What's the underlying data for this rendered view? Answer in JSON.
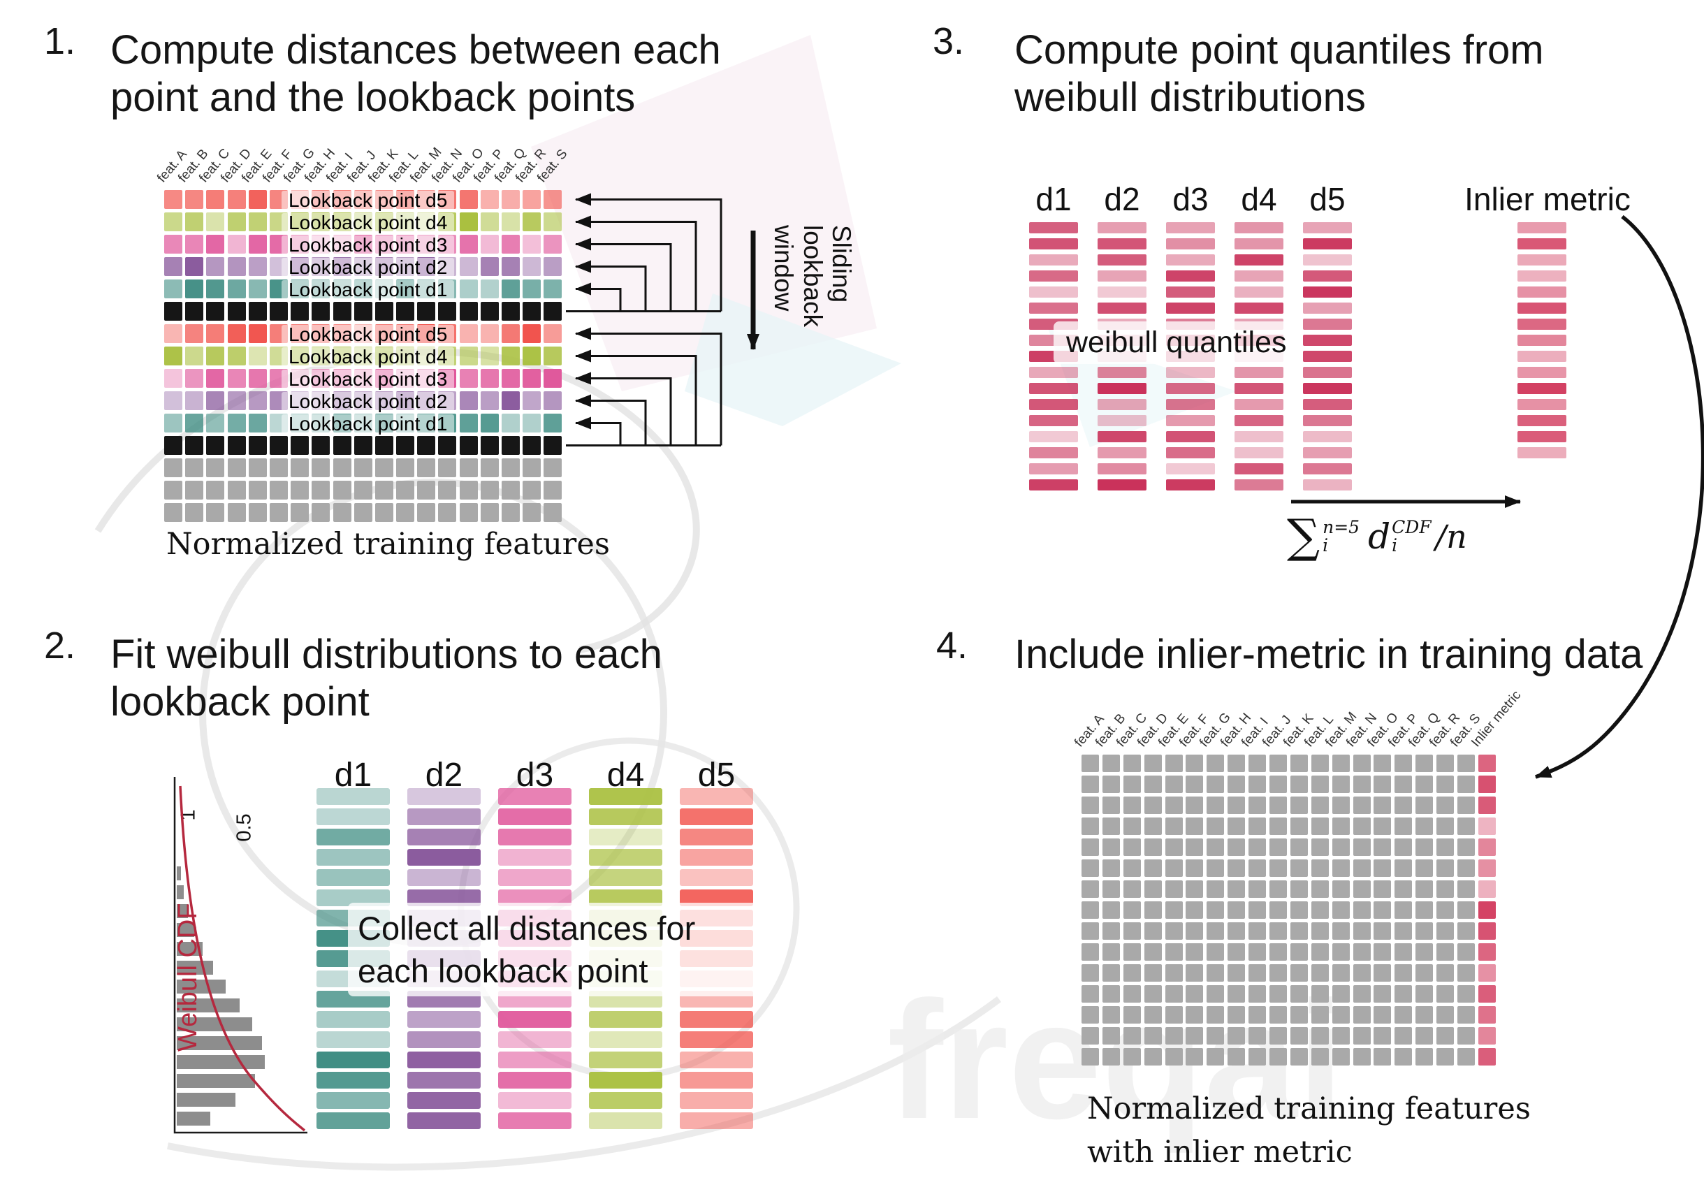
{
  "colors": {
    "d1": "#3f8d83",
    "d2": "#8a5a9d",
    "d3": "#e0579b",
    "d4": "#a9bf3e",
    "d5": "#f1514a",
    "current": "#161616",
    "plain": "#a9a9a9",
    "quantile": "#c93059",
    "inlier": "#d23b5e",
    "cdf_curve": "#b5283e",
    "hist_bar": "#8d8d8d"
  },
  "features": [
    "feat. A",
    "feat. B",
    "feat. C",
    "feat. D",
    "feat. E",
    "feat. F",
    "feat. G",
    "feat. H",
    "feat. I",
    "feat. J",
    "feat. K",
    "feat. L",
    "feat. M",
    "feat. N",
    "feat. O",
    "feat. P",
    "feat. Q",
    "feat. R",
    "feat. S"
  ],
  "step1": {
    "number": "1.",
    "title": "Compute distances between each point and the lookback points",
    "rows": [
      {
        "type": "lookback",
        "d": "d5",
        "label": "Lookback point d5"
      },
      {
        "type": "lookback",
        "d": "d4",
        "label": "Lookback point d4"
      },
      {
        "type": "lookback",
        "d": "d3",
        "label": "Lookback point d3"
      },
      {
        "type": "lookback",
        "d": "d2",
        "label": "Lookback point d2"
      },
      {
        "type": "lookback",
        "d": "d1",
        "label": "Lookback point d1"
      },
      {
        "type": "current"
      },
      {
        "type": "lookback",
        "d": "d5",
        "label": "Lookback point d5"
      },
      {
        "type": "lookback",
        "d": "d4",
        "label": "Lookback point d4"
      },
      {
        "type": "lookback",
        "d": "d3",
        "label": "Lookback point d3"
      },
      {
        "type": "lookback",
        "d": "d2",
        "label": "Lookback point d2"
      },
      {
        "type": "lookback",
        "d": "d1",
        "label": "Lookback point d1"
      },
      {
        "type": "current"
      },
      {
        "type": "plain"
      },
      {
        "type": "plain"
      },
      {
        "type": "plain"
      }
    ],
    "sliding_label": "Sliding lookback window",
    "caption": "Normalized training features"
  },
  "step2": {
    "number": "2.",
    "title": "Fit weibull distributions to each lookback point",
    "columns": [
      {
        "label": "d1",
        "color_key": "d1"
      },
      {
        "label": "d2",
        "color_key": "d2"
      },
      {
        "label": "d3",
        "color_key": "d3"
      },
      {
        "label": "d4",
        "color_key": "d4"
      },
      {
        "label": "d5",
        "color_key": "d5"
      }
    ],
    "overlay": "Collect all distances for each lookback point",
    "cdf": {
      "label": "Weibull CDF",
      "ticks": [
        "1",
        "0.5"
      ],
      "hist": [
        6,
        10,
        16,
        25,
        37,
        52,
        70,
        90,
        108,
        122,
        126,
        112,
        84,
        48
      ]
    }
  },
  "step3": {
    "number": "3.",
    "title": "Compute point quantiles from weibull distributions",
    "columns": [
      "d1",
      "d2",
      "d3",
      "d4",
      "d5"
    ],
    "overlay": "weibull quantiles",
    "inlier_label": "Inlier metric",
    "formula": {
      "sum": "∑",
      "upper": "n=5",
      "lower": "i",
      "var": "d",
      "var_sup": "CDF",
      "var_sub": "i",
      "tail": "/n"
    }
  },
  "step4": {
    "number": "4.",
    "title": "Include inlier-metric in training data",
    "extra_column_label": "Inlier metric",
    "caption": "Normalized training features with inlier metric"
  },
  "watermark": "freqai"
}
